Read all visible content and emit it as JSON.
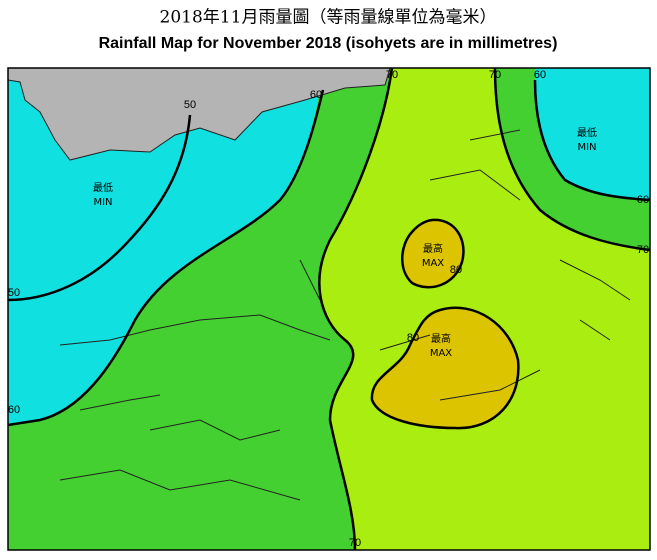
{
  "title": "2018年11月雨量圖（等雨量線單位為毫米）",
  "subtitle": "Rainfall Map for November 2018 (isohyets are in millimetres)",
  "isohyet_labels": [
    50,
    50,
    60,
    60,
    60,
    60,
    70,
    70,
    70,
    70,
    80,
    80
  ],
  "min_markers": [
    {
      "zh": "最低",
      "en": "MIN"
    },
    {
      "zh": "最低",
      "en": "MIN"
    }
  ],
  "max_markers": [
    {
      "zh": "最高",
      "en": "MAX"
    },
    {
      "zh": "最高",
      "en": "MAX"
    }
  ]
}
